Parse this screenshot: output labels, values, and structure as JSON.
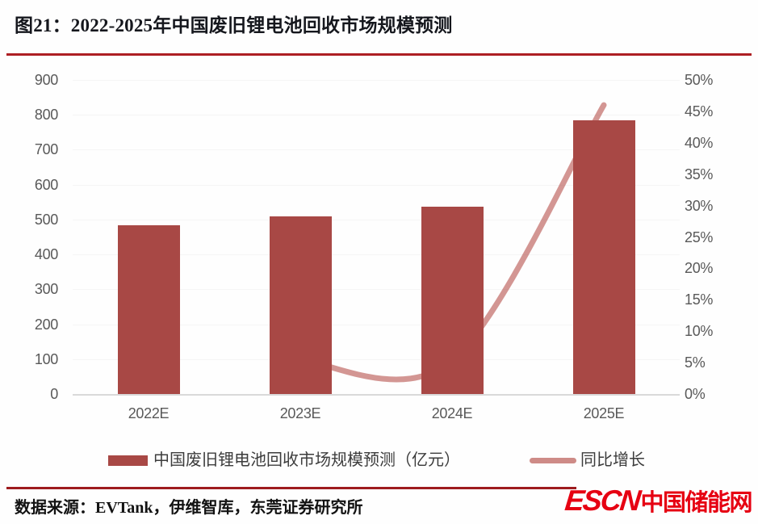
{
  "page": {
    "title": "图21：2022-2025年中国废旧锂电池回收市场规模预测",
    "source_note": "数据来源：EVTank，伊维智库，东莞证券研究所",
    "logo": {
      "latin": "ESCN",
      "cjk": "中国储能网"
    }
  },
  "colors": {
    "bar": "#A84845",
    "line": "#CE8B87",
    "top_rule": "#AD1F23",
    "bottom_rule": "#9E1B1E",
    "logo_red": "#E60012",
    "axis_text": "#595959",
    "axis_line": "#D9D9D9",
    "legend_text": "#3C3C3C",
    "title_text": "#15171D"
  },
  "chart_data": {
    "type": "bar",
    "subtype": "bar-with-line-overlay",
    "title": "2022-2025年中国废旧锂电池回收市场规模预测",
    "categories": [
      "2022E",
      "2023E",
      "2024E",
      "2025E"
    ],
    "series": [
      {
        "name": "中国废旧锂电池回收市场规模预测（亿元）",
        "type": "bar",
        "axis": "left",
        "values": [
          484,
          510,
          537,
          785
        ]
      },
      {
        "name": "同比增长",
        "type": "line",
        "axis": "right",
        "unit": "%",
        "values": [
          null,
          5.4,
          5.3,
          46.0
        ]
      }
    ],
    "left_axis": {
      "min": 0,
      "max": 900,
      "step": 100,
      "ticks": [
        "0",
        "100",
        "200",
        "300",
        "400",
        "500",
        "600",
        "700",
        "800",
        "900"
      ]
    },
    "right_axis": {
      "min": 0,
      "max": 50,
      "step": 5,
      "ticks": [
        "0%",
        "5%",
        "10%",
        "15%",
        "20%",
        "25%",
        "30%",
        "35%",
        "40%",
        "45%",
        "50%"
      ]
    },
    "legend_position": "bottom",
    "grid": "faint-horizontal",
    "line_smoothing": true
  }
}
